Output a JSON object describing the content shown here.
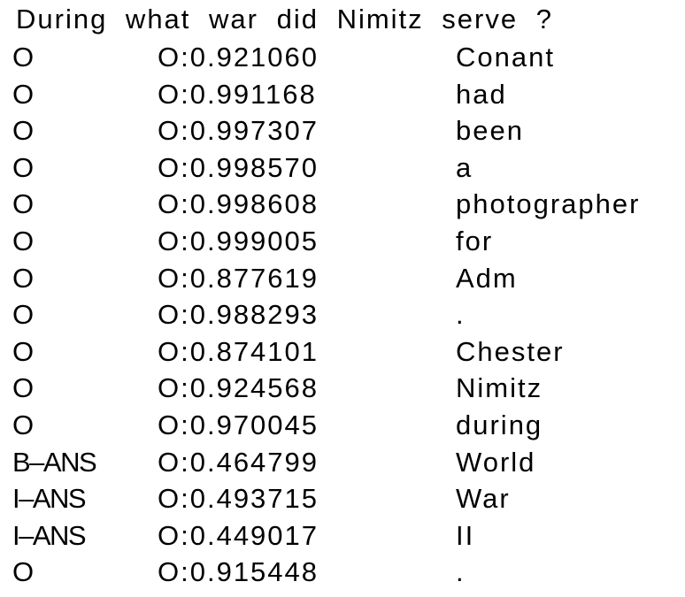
{
  "question": "During what war did Nimitz serve ?",
  "rows": [
    {
      "tag": "O",
      "score": "O:0.921060",
      "word": "Conant"
    },
    {
      "tag": "O",
      "score": "O:0.991168",
      "word": "had"
    },
    {
      "tag": "O",
      "score": "O:0.997307",
      "word": "been"
    },
    {
      "tag": "O",
      "score": "O:0.998570",
      "word": "a"
    },
    {
      "tag": "O",
      "score": "O:0.998608",
      "word": "photographer"
    },
    {
      "tag": "O",
      "score": "O:0.999005",
      "word": "for"
    },
    {
      "tag": "O",
      "score": "O:0.877619",
      "word": "Adm"
    },
    {
      "tag": "O",
      "score": "O:0.988293",
      "word": "."
    },
    {
      "tag": "O",
      "score": "O:0.874101",
      "word": "Chester"
    },
    {
      "tag": "O",
      "score": "O:0.924568",
      "word": "Nimitz"
    },
    {
      "tag": "O",
      "score": "O:0.970045",
      "word": "during"
    },
    {
      "tag": "B–ANS",
      "score": "O:0.464799",
      "word": "World"
    },
    {
      "tag": "I–ANS",
      "score": "O:0.493715",
      "word": "War"
    },
    {
      "tag": "I–ANS",
      "score": "O:0.449017",
      "word": "II"
    },
    {
      "tag": "O",
      "score": "O:0.915448",
      "word": "."
    }
  ]
}
